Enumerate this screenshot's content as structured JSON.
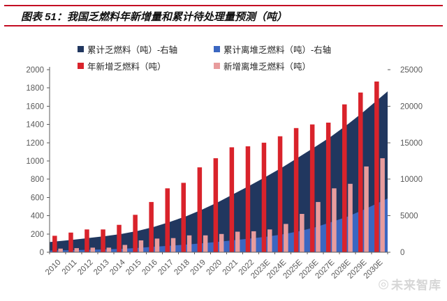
{
  "header": {
    "title": "图表 51：我国乏燃料年新增量和累计待处理量预测（吨）",
    "rule_color": "#C30D23"
  },
  "watermark": {
    "logo": "◎",
    "text": "未来智库"
  },
  "chart_data": {
    "type": "combo-bar-area",
    "title": "我国乏燃料年新增量和累计待处理量预测（吨）",
    "categories": [
      "2010",
      "2011",
      "2012",
      "2013",
      "2014",
      "2015",
      "2016",
      "2017",
      "2018",
      "2019",
      "2020",
      "2021",
      "2022",
      "2023E",
      "2024E",
      "2025E",
      "2026E",
      "2027E",
      "2028E",
      "2029E",
      "2030E"
    ],
    "series": [
      {
        "name": "累计乏燃料（吨）-右轴",
        "type": "area",
        "axis": "right",
        "color": "#21375F",
        "values": [
          1500,
          1720,
          1970,
          2220,
          2520,
          2930,
          3480,
          4180,
          4940,
          5870,
          6900,
          8050,
          9210,
          10410,
          11680,
          13040,
          14440,
          15860,
          17480,
          19230,
          21100
        ]
      },
      {
        "name": "累计离堆乏燃料（吨）-右轴",
        "type": "area",
        "axis": "right",
        "color": "#3B67C1",
        "values": [
          250,
          290,
          340,
          390,
          470,
          600,
          750,
          900,
          1050,
          1230,
          1430,
          1660,
          1890,
          2140,
          2450,
          2870,
          3420,
          4120,
          4870,
          5810,
          6840
        ]
      },
      {
        "name": "年新增乏燃料（吨）",
        "type": "bar",
        "axis": "left",
        "color": "#D9232B",
        "values": [
          180,
          215,
          250,
          250,
          300,
          410,
          550,
          700,
          760,
          930,
          1030,
          1150,
          1160,
          1200,
          1270,
          1360,
          1400,
          1420,
          1620,
          1750,
          1870
        ]
      },
      {
        "name": "新增离堆乏燃料（吨）",
        "type": "bar",
        "axis": "left",
        "color": "#E89C9D",
        "values": [
          40,
          45,
          50,
          50,
          80,
          130,
          150,
          155,
          185,
          185,
          200,
          225,
          230,
          250,
          310,
          420,
          550,
          700,
          750,
          940,
          1030
        ]
      }
    ],
    "left_axis": {
      "min": 0,
      "max": 2000,
      "step": 200
    },
    "right_axis": {
      "min": 0,
      "max": 25000,
      "step": 5000
    },
    "axis_text_color": "#595959",
    "axis_line_color": "#595959",
    "legend_position": "top",
    "grid": false
  }
}
